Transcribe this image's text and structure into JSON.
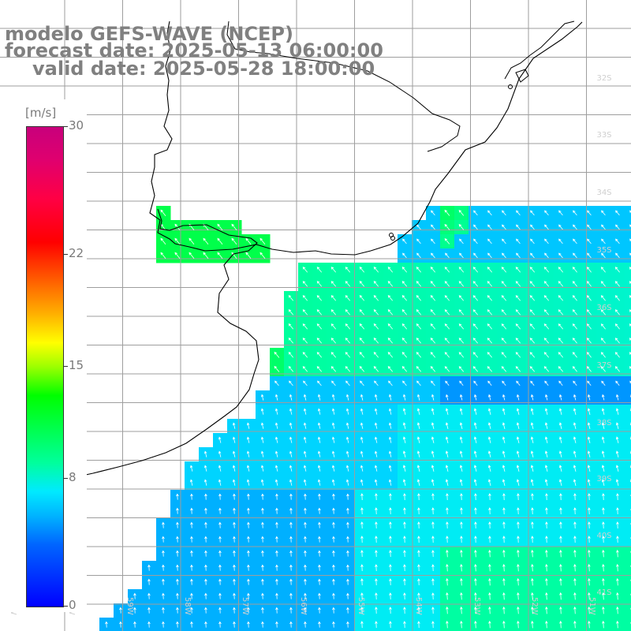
{
  "title": {
    "line1": "modelo GEFS-WAVE (NCEP)",
    "line2": "forecast date: 2025-05-13 06:00:00",
    "line3": "valid date: 2025-05-28 18:00:00"
  },
  "colorbar": {
    "unit": "[m/s]",
    "ticks": [
      "30",
      "22",
      "15",
      "8",
      "0"
    ],
    "tick_values": [
      30,
      22,
      15,
      8,
      0
    ],
    "min": 0,
    "max": 30
  },
  "map": {
    "lat_labels": [
      "32S",
      "33S",
      "34S",
      "35S",
      "36S",
      "37S",
      "38S",
      "39S",
      "40S",
      "41S"
    ],
    "lon_labels": [
      "61W",
      "60W",
      "59W",
      "58W",
      "57W",
      "56W",
      "55W",
      "54W",
      "53W",
      "52W",
      "51W"
    ],
    "colors": {
      "land": "#ffffff",
      "grid": "#9e9e9e",
      "coast": "#000000",
      "arrow": "#ffffff",
      "title": "#808080"
    }
  }
}
